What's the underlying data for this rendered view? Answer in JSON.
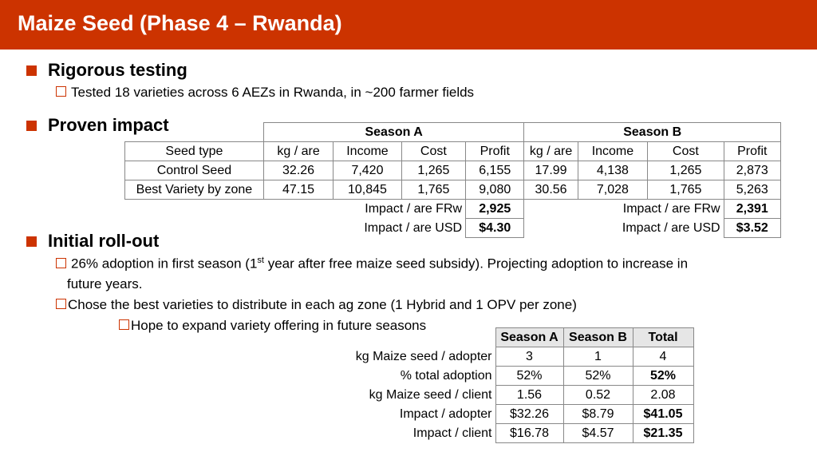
{
  "title": "Maize Seed (Phase 4 – Rwanda)",
  "sections": {
    "testing": {
      "heading": "Rigorous testing",
      "sub": "Tested 18 varieties across 6 AEZs in Rwanda, in ~200 farmer fields"
    },
    "impact": {
      "heading": "Proven impact"
    },
    "rollout": {
      "heading": "Initial roll-out",
      "sub1_a": "26% adoption in first season (1",
      "sub1_sup": "st",
      "sub1_b": " year after free maize seed subsidy). Projecting adoption to increase in",
      "sub1_c": "future years.",
      "sub2": "Chose the best varieties to distribute in each ag zone (1 Hybrid and 1 OPV per zone)",
      "sub3": "Hope to expand variety offering in future seasons"
    }
  },
  "impact_table": {
    "season_a": "Season A",
    "season_b": "Season B",
    "columns": [
      "Seed type",
      "kg / are",
      "Income",
      "Cost",
      "Profit",
      "kg / are",
      "Income",
      "Cost",
      "Profit"
    ],
    "rows": [
      [
        "Control Seed",
        "32.26",
        "7,420",
        "1,265",
        "6,155",
        "17.99",
        "4,138",
        "1,265",
        "2,873"
      ],
      [
        "Best Variety by zone",
        "47.15",
        "10,845",
        "1,765",
        "9,080",
        "30.56",
        "7,028",
        "1,765",
        "5,263"
      ]
    ],
    "impact_frw_label": "Impact / are FRw",
    "impact_frw_a": "2,925",
    "impact_frw_b": "2,391",
    "impact_usd_label": "Impact / are USD",
    "impact_usd_a": "$4.30",
    "impact_usd_b": "$3.52"
  },
  "rollout_table": {
    "columns": [
      "Season A",
      "Season B",
      "Total"
    ],
    "rows": [
      {
        "label": "kg Maize seed / adopter",
        "a": "3",
        "b": "1",
        "total": "4"
      },
      {
        "label": "% total adoption",
        "a": "52%",
        "b": "52%",
        "total": "52%"
      },
      {
        "label": "kg Maize seed / client",
        "a": "1.56",
        "b": "0.52",
        "total": "2.08"
      },
      {
        "label": "Impact / adopter",
        "a": "$32.26",
        "b": "$8.79",
        "total": "$41.05"
      },
      {
        "label": "Impact / client",
        "a": "$16.78",
        "b": "$4.57",
        "total": "$21.35"
      }
    ]
  },
  "colors": {
    "accent": "#cc3300",
    "header_fill": "#e6e6e6"
  }
}
